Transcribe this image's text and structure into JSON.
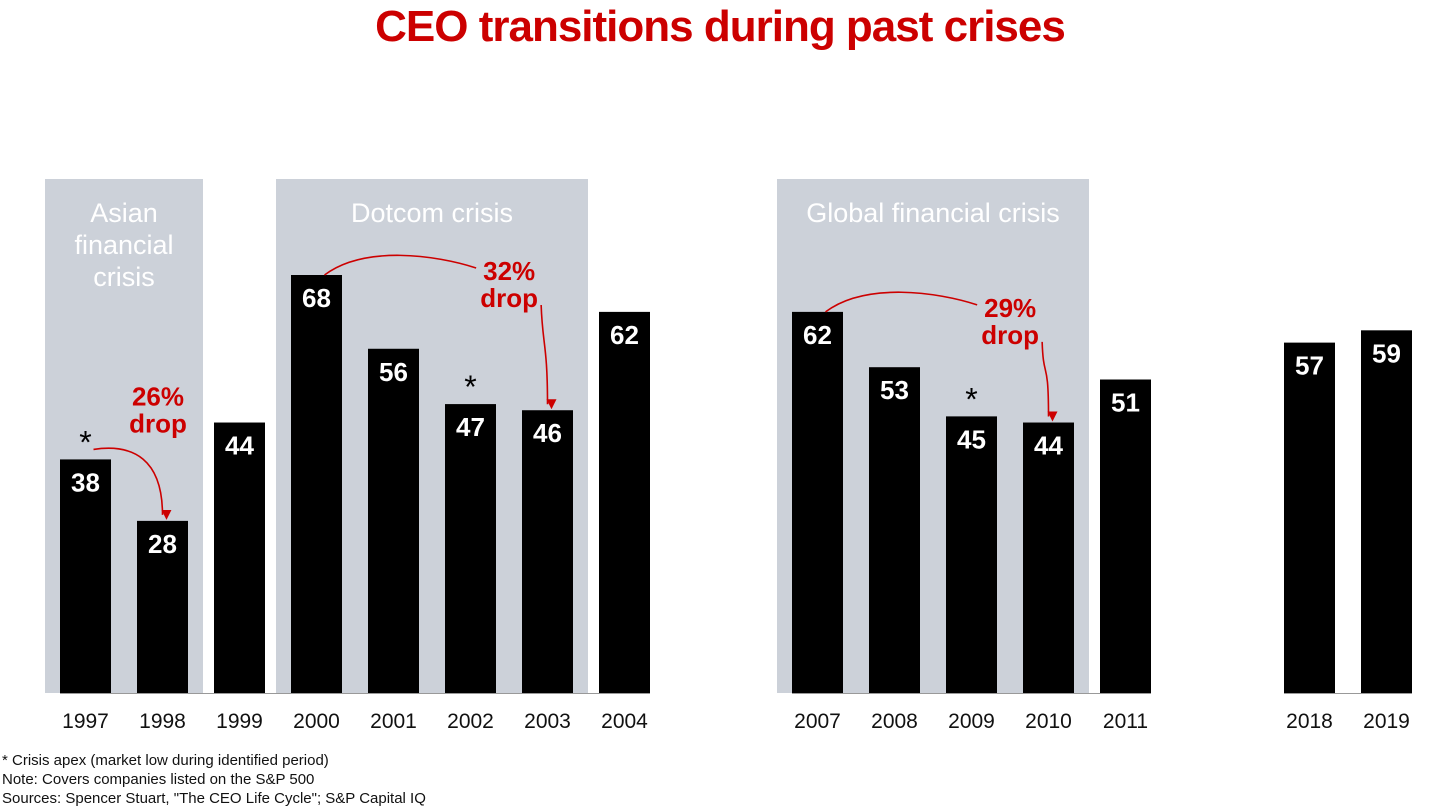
{
  "title": "CEO transitions during past crises",
  "colors": {
    "title": "#cc0000",
    "bar": "#000000",
    "shade": "#ccd1d9",
    "annotation": "#cc0000",
    "bar_label": "#ffffff",
    "shade_label": "#ffffff"
  },
  "chart_data": {
    "type": "bar",
    "title": "CEO transitions during past crises",
    "xlabel": "",
    "ylabel": "",
    "ylim": [
      0,
      68
    ],
    "grid": false,
    "groups": [
      {
        "categories": [
          "1997",
          "1998",
          "1999",
          "2000",
          "2001",
          "2002",
          "2003",
          "2004"
        ],
        "values": [
          38,
          28,
          44,
          68,
          56,
          47,
          46,
          62
        ]
      },
      {
        "categories": [
          "2007",
          "2008",
          "2009",
          "2010",
          "2011"
        ],
        "values": [
          62,
          53,
          45,
          44,
          51
        ]
      },
      {
        "categories": [
          "2018",
          "2019"
        ],
        "values": [
          57,
          59
        ]
      }
    ],
    "crisis_periods": [
      {
        "label_lines": [
          "Asian",
          "financial",
          "crisis"
        ],
        "from": "1997",
        "to": "1998"
      },
      {
        "label_lines": [
          "Dotcom crisis"
        ],
        "from": "2000",
        "to": "2003"
      },
      {
        "label_lines": [
          "Global financial crisis"
        ],
        "from": "2007",
        "to": "2010"
      }
    ],
    "apex_markers": [
      "1997",
      "2002",
      "2009"
    ],
    "apex_symbol": "*",
    "drops": [
      {
        "from": "1997",
        "to": "1998",
        "lines": [
          "26%",
          "drop"
        ]
      },
      {
        "from": "2000",
        "to": "2003",
        "lines": [
          "32%",
          "drop"
        ]
      },
      {
        "from": "2007",
        "to": "2010",
        "lines": [
          "29%",
          "drop"
        ]
      }
    ]
  },
  "notes": [
    "* Crisis apex (market low during identified period)",
    "Note: Covers companies listed on the S&P 500",
    "Sources: Spencer Stuart, \"The CEO Life Cycle\"; S&P Capital IQ"
  ]
}
